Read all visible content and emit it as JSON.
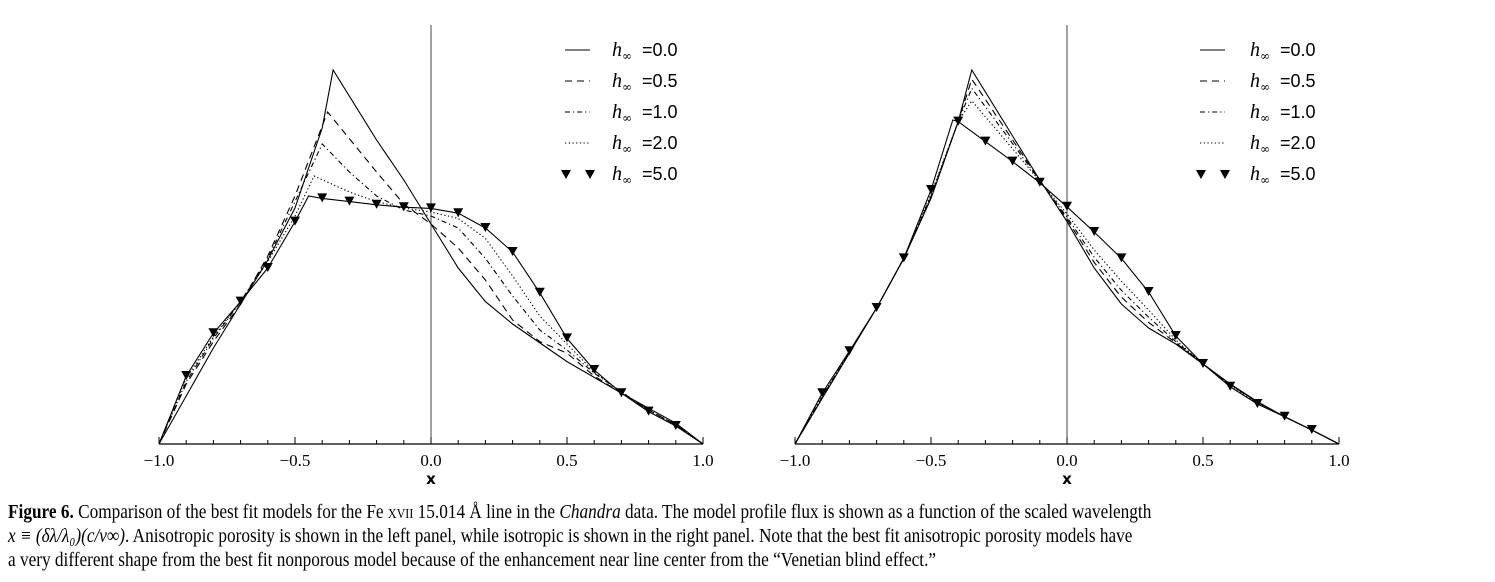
{
  "chart_data": [
    {
      "type": "line",
      "panel": "left",
      "description_label": "Anisotropic porosity",
      "xlabel": "x",
      "ylabel": "",
      "xlim": [
        -1.0,
        1.0
      ],
      "ylim": [
        0,
        1.0
      ],
      "x_ticks": [
        "−1.0",
        "−0.5",
        "0.0",
        "0.5",
        "1.0"
      ],
      "x_tick_values": [
        -1.0,
        -0.5,
        0.0,
        0.5,
        1.0
      ],
      "legend_position": "top-right",
      "series": [
        {
          "name": "h∞ =0.0",
          "h": "h",
          "sub": "∞",
          "value": "=0.0",
          "style": "solid",
          "x": [
            -1,
            -0.9,
            -0.8,
            -0.7,
            -0.6,
            -0.5,
            -0.4,
            -0.36,
            -0.2,
            -0.1,
            0,
            0.1,
            0.2,
            0.3,
            0.5,
            0.7,
            0.9,
            1
          ],
          "y": [
            0,
            0.12,
            0.24,
            0.35,
            0.46,
            0.59,
            0.79,
            0.935,
            0.76,
            0.66,
            0.55,
            0.44,
            0.356,
            0.3,
            0.206,
            0.127,
            0.052,
            0
          ]
        },
        {
          "name": "h∞ =0.5",
          "h": "h",
          "sub": "∞",
          "value": "=0.5",
          "style": "dashed",
          "x": [
            -1,
            -0.9,
            -0.8,
            -0.7,
            -0.6,
            -0.5,
            -0.38,
            -0.2,
            -0.1,
            0,
            0.1,
            0.2,
            0.3,
            0.4,
            0.5,
            0.6,
            0.7,
            0.8,
            0.9,
            1
          ],
          "y": [
            0,
            0.15,
            0.256,
            0.35,
            0.47,
            0.62,
            0.83,
            0.68,
            0.6,
            0.55,
            0.49,
            0.41,
            0.31,
            0.256,
            0.227,
            0.17,
            0.127,
            0.085,
            0.048,
            0
          ]
        },
        {
          "name": "h∞ =1.0",
          "h": "h",
          "sub": "∞",
          "value": "=1.0",
          "style": "dashdot",
          "x": [
            -1,
            -0.9,
            -0.8,
            -0.7,
            -0.6,
            -0.5,
            -0.4,
            -0.3,
            -0.2,
            -0.1,
            0,
            0.1,
            0.2,
            0.3,
            0.4,
            0.5,
            0.6,
            0.7,
            0.8,
            0.9,
            1
          ],
          "y": [
            0,
            0.156,
            0.264,
            0.356,
            0.464,
            0.606,
            0.75,
            0.68,
            0.62,
            0.585,
            0.57,
            0.54,
            0.464,
            0.37,
            0.285,
            0.235,
            0.177,
            0.13,
            0.085,
            0.048,
            0
          ]
        },
        {
          "name": "h∞ =2.0",
          "h": "h",
          "sub": "∞",
          "value": "=2.0",
          "style": "dotted",
          "x": [
            -1,
            -0.9,
            -0.8,
            -0.7,
            -0.6,
            -0.5,
            -0.43,
            -0.3,
            -0.2,
            -0.1,
            0,
            0.1,
            0.2,
            0.3,
            0.4,
            0.5,
            0.6,
            0.7,
            0.8,
            0.9,
            1
          ],
          "y": [
            0,
            0.164,
            0.268,
            0.356,
            0.456,
            0.57,
            0.67,
            0.63,
            0.606,
            0.59,
            0.58,
            0.564,
            0.514,
            0.42,
            0.32,
            0.25,
            0.18,
            0.13,
            0.085,
            0.048,
            0
          ]
        },
        {
          "name": "h∞ =5.0",
          "h": "h",
          "sub": "∞",
          "value": "=5.0",
          "style": "triangles",
          "x": [
            -1,
            -0.9,
            -0.8,
            -0.7,
            -0.6,
            -0.5,
            -0.45,
            -0.4,
            -0.3,
            -0.2,
            -0.1,
            0,
            0.1,
            0.2,
            0.3,
            0.4,
            0.5,
            0.6,
            0.7,
            0.8,
            0.9,
            1
          ],
          "y": [
            0,
            0.17,
            0.277,
            0.356,
            0.44,
            0.556,
            0.62,
            0.614,
            0.606,
            0.598,
            0.592,
            0.589,
            0.577,
            0.54,
            0.48,
            0.378,
            0.264,
            0.185,
            0.127,
            0.081,
            0.045,
            0
          ],
          "markers_x": [
            -0.9,
            -0.8,
            -0.7,
            -0.6,
            -0.5,
            -0.4,
            -0.3,
            -0.2,
            -0.1,
            0,
            0.1,
            0.2,
            0.3,
            0.4,
            0.5,
            0.6,
            0.7,
            0.8,
            0.9
          ]
        }
      ]
    },
    {
      "type": "line",
      "panel": "right",
      "description_label": "Isotropic porosity",
      "xlabel": "x",
      "ylabel": "",
      "xlim": [
        -1.0,
        1.0
      ],
      "ylim": [
        0,
        1.0
      ],
      "x_ticks": [
        "−1.0",
        "−0.5",
        "0.0",
        "0.5",
        "1.0"
      ],
      "x_tick_values": [
        -1.0,
        -0.5,
        0.0,
        0.5,
        1.0
      ],
      "legend_position": "top-right",
      "series": [
        {
          "name": "h∞ =0.0",
          "h": "h",
          "sub": "∞",
          "value": "=0.0",
          "style": "solid",
          "x": [
            -1,
            -0.9,
            -0.8,
            -0.7,
            -0.6,
            -0.5,
            -0.4,
            -0.35,
            -0.2,
            -0.1,
            0,
            0.1,
            0.2,
            0.3,
            0.4,
            0.5,
            0.6,
            0.7,
            0.8,
            0.9,
            1
          ],
          "y": [
            0,
            0.114,
            0.227,
            0.34,
            0.464,
            0.614,
            0.806,
            0.935,
            0.77,
            0.66,
            0.556,
            0.44,
            0.35,
            0.29,
            0.25,
            0.2,
            0.15,
            0.106,
            0.068,
            0.035,
            0
          ]
        },
        {
          "name": "h∞ =0.5",
          "h": "h",
          "sub": "∞",
          "value": "=0.5",
          "style": "dashed",
          "x": [
            -1,
            -0.9,
            -0.8,
            -0.7,
            -0.6,
            -0.5,
            -0.4,
            -0.35,
            -0.2,
            -0.1,
            0,
            0.1,
            0.2,
            0.3,
            0.4,
            0.5,
            0.6,
            0.7,
            0.8,
            0.9,
            1
          ],
          "y": [
            0,
            0.116,
            0.228,
            0.34,
            0.464,
            0.617,
            0.806,
            0.912,
            0.76,
            0.659,
            0.562,
            0.454,
            0.367,
            0.304,
            0.253,
            0.2,
            0.149,
            0.105,
            0.068,
            0.035,
            0
          ]
        },
        {
          "name": "h∞ =1.0",
          "h": "h",
          "sub": "∞",
          "value": "=1.0",
          "style": "dashdot",
          "x": [
            -1,
            -0.9,
            -0.8,
            -0.7,
            -0.6,
            -0.5,
            -0.4,
            -0.35,
            -0.2,
            -0.1,
            0,
            0.1,
            0.2,
            0.3,
            0.4,
            0.5,
            0.6,
            0.7,
            0.8,
            0.9,
            1
          ],
          "y": [
            0,
            0.118,
            0.229,
            0.34,
            0.464,
            0.62,
            0.806,
            0.889,
            0.751,
            0.658,
            0.567,
            0.467,
            0.384,
            0.317,
            0.256,
            0.2,
            0.148,
            0.104,
            0.068,
            0.035,
            0
          ]
        },
        {
          "name": "h∞ =2.0",
          "h": "h",
          "sub": "∞",
          "value": "=2.0",
          "style": "dotted",
          "x": [
            -1,
            -0.9,
            -0.8,
            -0.7,
            -0.6,
            -0.5,
            -0.4,
            -0.35,
            -0.2,
            -0.1,
            0,
            0.1,
            0.2,
            0.3,
            0.4,
            0.5,
            0.6,
            0.7,
            0.8,
            0.9,
            1
          ],
          "y": [
            0,
            0.12,
            0.23,
            0.34,
            0.464,
            0.625,
            0.806,
            0.858,
            0.738,
            0.657,
            0.575,
            0.485,
            0.407,
            0.335,
            0.26,
            0.2,
            0.147,
            0.103,
            0.068,
            0.035,
            0
          ]
        },
        {
          "name": "h∞ =5.0",
          "h": "h",
          "sub": "∞",
          "value": "=5.0",
          "style": "triangles",
          "x": [
            -1,
            -0.9,
            -0.8,
            -0.7,
            -0.6,
            -0.5,
            -0.42,
            -0.4,
            -0.3,
            -0.2,
            -0.1,
            0,
            0.1,
            0.2,
            0.3,
            0.4,
            0.5,
            0.6,
            0.7,
            0.8,
            0.9,
            1
          ],
          "y": [
            0,
            0.127,
            0.232,
            0.34,
            0.464,
            0.635,
            0.81,
            0.806,
            0.756,
            0.706,
            0.653,
            0.593,
            0.53,
            0.464,
            0.38,
            0.27,
            0.2,
            0.143,
            0.1,
            0.068,
            0.035,
            0
          ],
          "markers_x": [
            -0.9,
            -0.8,
            -0.7,
            -0.6,
            -0.5,
            -0.4,
            -0.3,
            -0.2,
            -0.1,
            0,
            0.1,
            0.2,
            0.3,
            0.4,
            0.5,
            0.6,
            0.7,
            0.8,
            0.9
          ]
        }
      ]
    }
  ],
  "caption": {
    "line1": {
      "label": "Figure 6.",
      "t1": " Comparison of the best fit models for the Fe ",
      "ion": "xvii",
      "t2": " 15.014 Å line in the ",
      "mission": "Chandra",
      "t3": " data. The model profile flux is shown as a function of the scaled wavelength"
    },
    "line2": {
      "math": "x ≡ (δλ/λ₀)(c/v∞)",
      "t1": ". Anisotropic porosity is shown in the left panel, while isotropic is shown in the right panel. Note that the best fit anisotropic porosity models have"
    },
    "line3": "a very different shape from the best fit nonporous model because of the enhancement near line center from the “Venetian blind effect.”"
  }
}
